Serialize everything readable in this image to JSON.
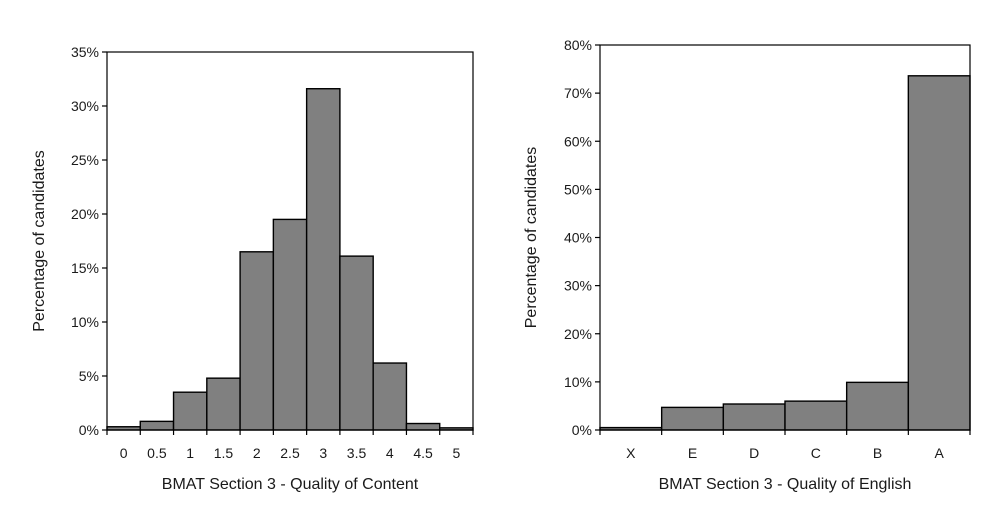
{
  "chart_data": [
    {
      "type": "bar",
      "xlabel": "BMAT Section 3 - Quality of Content",
      "ylabel": "Percentage of candidates",
      "ylim": [
        0,
        35
      ],
      "ytick_step": 5,
      "ytick_suffix": "%",
      "categories": [
        "0",
        "0.5",
        "1",
        "1.5",
        "2",
        "2.5",
        "3",
        "3.5",
        "4",
        "4.5",
        "5"
      ],
      "values": [
        0.3,
        0.8,
        3.5,
        4.8,
        16.5,
        19.5,
        31.6,
        16.1,
        6.2,
        0.6,
        0.2
      ],
      "bar_color": "#808080",
      "grid": false,
      "legend": "none"
    },
    {
      "type": "bar",
      "xlabel": "BMAT Section 3 - Quality of English",
      "ylabel": "Percentage of candidates",
      "ylim": [
        0,
        80
      ],
      "ytick_step": 10,
      "ytick_suffix": "%",
      "categories": [
        "X",
        "E",
        "D",
        "C",
        "B",
        "A"
      ],
      "values": [
        0.5,
        4.7,
        5.4,
        6.0,
        9.9,
        73.6
      ],
      "bar_color": "#808080",
      "grid": false,
      "legend": "none"
    }
  ]
}
